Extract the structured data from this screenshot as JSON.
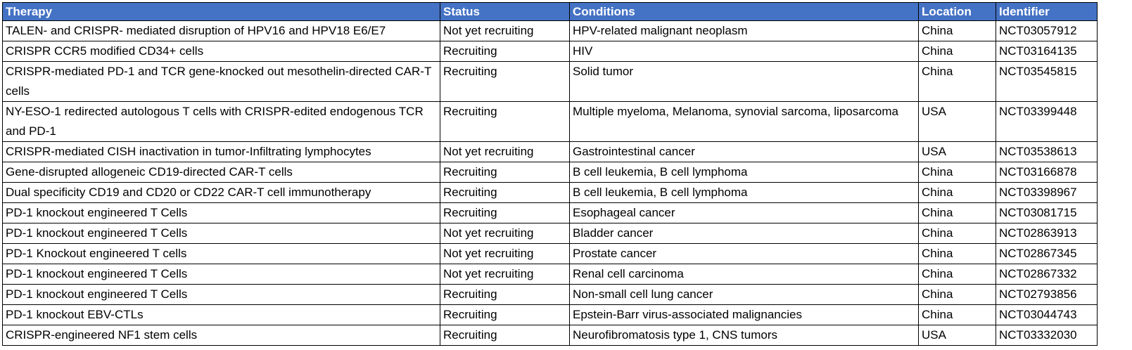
{
  "table": {
    "headers": [
      "Therapy",
      "Status",
      "Conditions",
      "Location",
      "Identifier"
    ],
    "rows": [
      [
        "TALEN- and CRISPR- mediated disruption of HPV16 and HPV18 E6/E7",
        "Not yet recruiting",
        "HPV-related malignant neoplasm",
        "China",
        "NCT03057912"
      ],
      [
        "CRISPR CCR5 modified CD34+ cells",
        "Recruiting",
        "HIV",
        "China",
        "NCT03164135"
      ],
      [
        "CRISPR-mediated PD-1 and TCR gene-knocked out mesothelin-directed CAR-T cells",
        "Recruiting",
        "Solid tumor",
        "China",
        "NCT03545815"
      ],
      [
        "NY-ESO-1 redirected autologous T cells with CRISPR-edited endogenous TCR and PD-1",
        "Recruiting",
        "Multiple myeloma, Melanoma, synovial sarcoma, liposarcoma",
        "USA",
        "NCT03399448"
      ],
      [
        "CRISPR-mediated CISH inactivation in tumor-Infiltrating lymphocytes",
        "Not yet recruiting",
        "Gastrointestinal cancer",
        "USA",
        "NCT03538613"
      ],
      [
        "Gene-disrupted allogeneic CD19-directed CAR-T cells",
        "Recruiting",
        "B cell leukemia, B cell lymphoma",
        "China",
        "NCT03166878"
      ],
      [
        "Dual specificity CD19 and CD20 or CD22 CAR-T cell immunotherapy",
        "Recruiting",
        "B cell leukemia, B cell lymphoma",
        "China",
        "NCT03398967"
      ],
      [
        "PD-1 knockout engineered T Cells",
        "Recruiting",
        "Esophageal cancer",
        "China",
        "NCT03081715"
      ],
      [
        "PD-1 knockout engineered T Cells",
        "Not yet recruiting",
        "Bladder cancer",
        "China",
        "NCT02863913"
      ],
      [
        "PD-1 Knockout engineered T cells",
        "Not yet recruiting",
        "Prostate cancer",
        "China",
        "NCT02867345"
      ],
      [
        "PD-1 knockout engineered T Cells",
        "Not yet recruiting",
        "Renal cell carcinoma",
        "China",
        "NCT02867332"
      ],
      [
        "PD-1 knockout engineered T Cells",
        "Recruiting",
        "Non-small cell lung cancer",
        "China",
        "NCT02793856"
      ],
      [
        "PD-1 knockout EBV-CTLs",
        "Recruiting",
        "Epstein-Barr virus-associated malignancies",
        "China",
        "NCT03044743"
      ],
      [
        "CRISPR-engineered NF1 stem cells",
        "Recruiting",
        "Neurofibromatosis type 1, CNS tumors",
        "USA",
        "NCT03332030"
      ]
    ]
  },
  "colors": {
    "header_bg": "#4472c4",
    "header_text": "#ffffff"
  }
}
